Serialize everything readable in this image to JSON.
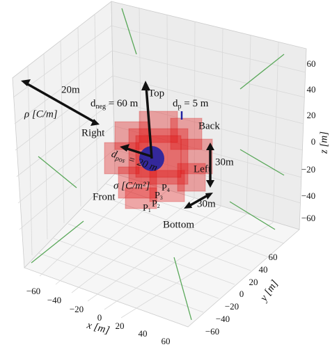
{
  "axes": {
    "x": {
      "label": "x [m]",
      "ticks": [
        "−60",
        "−40",
        "−20",
        "0",
        "20",
        "40",
        "60"
      ]
    },
    "y": {
      "label": "y [m]",
      "ticks": [
        "−60",
        "−40",
        "−20",
        "0",
        "20",
        "40",
        "60"
      ]
    },
    "z": {
      "label": "z [m]",
      "ticks": [
        "60",
        "40",
        "20",
        "0",
        "−20",
        "−40",
        "−60"
      ]
    }
  },
  "annotations": {
    "left_length": "20m",
    "rho": "ρ [C/m]",
    "right": "Right",
    "top": "Top",
    "back": "Back",
    "left": "Left",
    "height": "30m",
    "depth": "30m",
    "front": "Front",
    "bottom": "Bottom",
    "sigma": "σ [C/m²]",
    "d_neg": {
      "symbol": "d",
      "subscript": "neg",
      "text": " = 60 m"
    },
    "d_p": {
      "symbol": "d",
      "subscript": "p",
      "text": " = 5 m"
    },
    "d_pos": {
      "symbol": "d",
      "subscript": "pos",
      "text": " = 20 m"
    },
    "points": [
      "P",
      "P",
      "P",
      "P"
    ],
    "point_indices": [
      "1",
      "2",
      "3",
      "4"
    ]
  }
}
